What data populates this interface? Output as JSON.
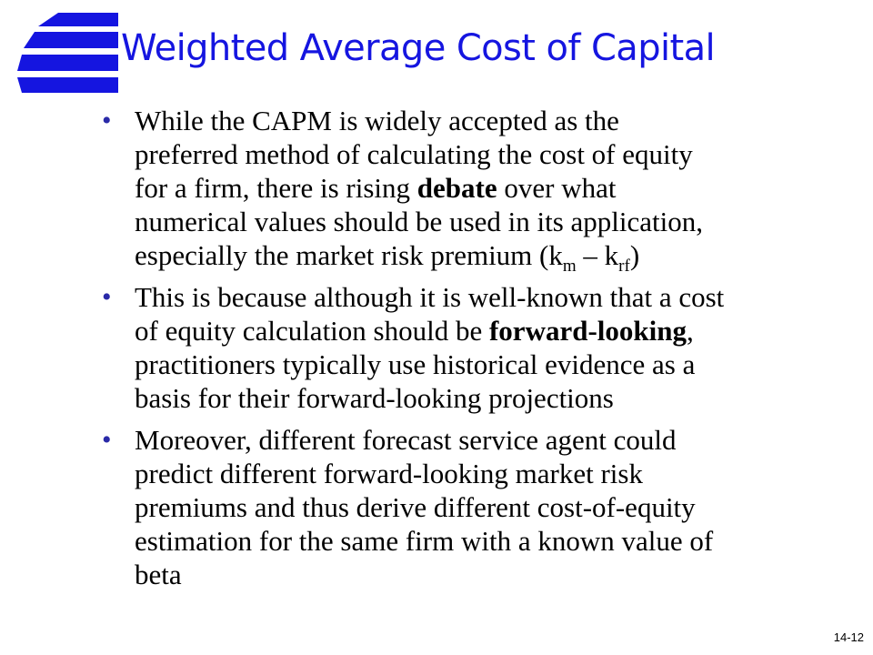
{
  "slide": {
    "title": "Weighted Average Cost of Capital",
    "slide_number": "14-12",
    "bullet_glyph": "•",
    "logo_icon": "stacked-blue-bars-logo",
    "accent_color": "#1515e0"
  },
  "bullets": [
    {
      "lines": {
        "l1": "While the CAPM is widely accepted as the",
        "l2": "preferred method of calculating the cost of equity",
        "l3a": "for a firm, there is rising ",
        "l3b": "debate",
        "l3c": " over what",
        "l4": "numerical values should be used in its application,",
        "l5a": "especially the market risk premium (k",
        "l5b": "m",
        "l5c": " – k",
        "l5d": "rf",
        "l5e": ")"
      }
    },
    {
      "lines": {
        "l1": "This is because although it is well-known that a cost",
        "l2a": "of equity calculation should be ",
        "l2b": "forward-looking",
        "l2c": ",",
        "l3": "practitioners typically use historical evidence as a",
        "l4": "basis for their forward-looking projections"
      }
    },
    {
      "lines": {
        "l1": "Moreover, different forecast service agent could",
        "l2": "predict different forward-looking market risk",
        "l3": "premiums and thus derive different cost-of-equity",
        "l4": "estimation for the same firm with a known value of",
        "l5": "beta"
      }
    }
  ]
}
